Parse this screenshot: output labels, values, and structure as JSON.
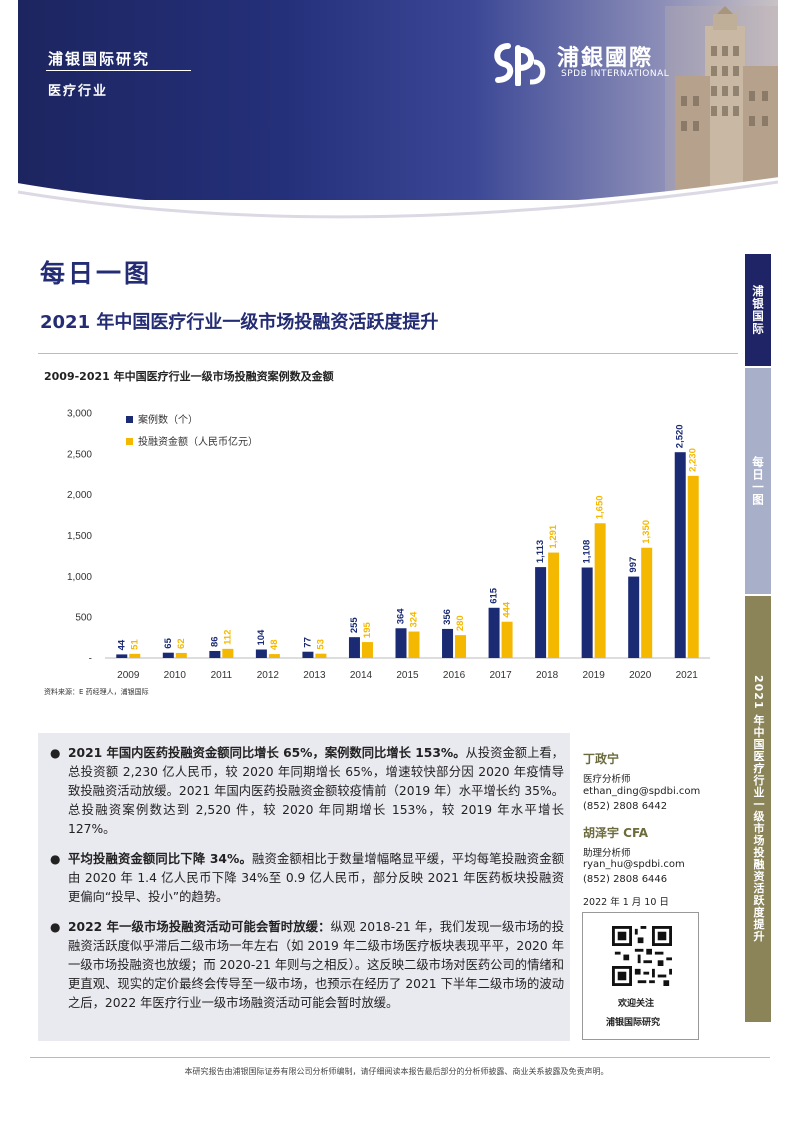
{
  "header": {
    "brand_name": "浦银国际研究",
    "industry": "医疗行业",
    "logo_cn": "浦銀國際",
    "logo_en": "SPDB INTERNATIONAL",
    "colors": {
      "primary": "#242c74",
      "accent": "#f5b800",
      "navy_bar": "#1a2a73"
    }
  },
  "title": "每日一图",
  "subtitle": "2021 年中国医疗行业一级市场投融资活跃度提升",
  "chart_data": {
    "type": "bar",
    "title": "2009-2021 年中国医疗行业一级市场投融资案例数及金额",
    "categories": [
      "2009",
      "2010",
      "2011",
      "2012",
      "2013",
      "2014",
      "2015",
      "2016",
      "2017",
      "2018",
      "2019",
      "2020",
      "2021"
    ],
    "series": [
      {
        "name": "案例数（个）",
        "color": "#1a2a73",
        "values": [
          44,
          65,
          86,
          104,
          77,
          255,
          364,
          356,
          615,
          1113,
          1108,
          997,
          2520
        ],
        "labels": [
          "44",
          "65",
          "86",
          "104",
          "77",
          "255",
          "364",
          "356",
          "615",
          "1,113",
          "1,108",
          "997",
          "2,520"
        ]
      },
      {
        "name": "投融资金额（人民币亿元）",
        "color": "#f5b800",
        "values": [
          51,
          62,
          112,
          48,
          53,
          195,
          324,
          280,
          444,
          1291,
          1650,
          1350,
          2230
        ],
        "labels": [
          "51",
          "62",
          "112",
          "48",
          "53",
          "195",
          "324",
          "280",
          "444",
          "1,291",
          "1,650",
          "1,350",
          "2,230"
        ]
      }
    ],
    "ylim": [
      0,
      3000
    ],
    "yticks": [
      "3,000",
      "2,500",
      "2,000",
      "1,500",
      "1,000",
      "500",
      "-"
    ],
    "xlabel": "",
    "ylabel": "",
    "legend_position": "top-left"
  },
  "source": "资料来源：E 药经理人，浦银国际",
  "bullets": [
    {
      "bold": "2021 年国内医药投融资金额同比增长 65%，案例数同比增长 153%。",
      "text": "从投资金额上看，总投资额 2,230 亿人民币，较 2020 年同期增长 65%，增速较快部分因 2020 年疫情导致投融资活动放缓。2021 年国内医药投融资金额较疫情前（2019 年）水平增长约 35%。总投融资案例数达到 2,520 件，较 2020 年同期增长 153%，较 2019 年水平增长 127%。"
    },
    {
      "bold": "平均投融资金额同比下降 34%。",
      "text": "融资金额相比于数量增幅略显平缓，平均每笔投融资金额由 2020 年 1.4 亿人民币下降 34%至 0.9 亿人民币，部分反映 2021 年医药板块投融资更偏向“投早、投小”的趋势。"
    },
    {
      "bold": "2022 年一级市场投融资活动可能会暂时放缓：",
      "text": "纵观 2018-21 年，我们发现一级市场的投融资活跃度似乎滞后二级市场一年左右（如 2019 年二级市场医疗板块表现平平，2020 年一级市场投融资也放缓；而 2020-21 年则与之相反）。这反映二级市场对医药公司的情绪和更直观、现实的定价最终会传导至一级市场，也预示在经历了 2021 下半年二级市场的波动之后，2022 年医疗行业一级市场融资活动可能会暂时放缓。"
    }
  ],
  "analysts": [
    {
      "name": "丁政宁",
      "role": "医疗分析师",
      "email": "ethan_ding@spdbi.com",
      "phone": "(852) 2808 6442"
    },
    {
      "name": "胡泽宇  CFA",
      "role": "助理分析师",
      "email": "ryan_hu@spdbi.com",
      "phone": "(852) 2808 6446"
    }
  ],
  "date": "2022 年 1 月 10 日",
  "qr": {
    "label1": "欢迎关注",
    "label2": "浦银国际研究"
  },
  "sidebar": {
    "label1": "浦银国际",
    "label2": "每日一图",
    "label3": "2021 年中国医疗行业一级市场投融资活跃度提升"
  },
  "disclaimer": "本研究报告由浦银国际证券有限公司分析师编制，请仔细阅读本报告最后部分的分析师披露、商业关系披露及免责声明。"
}
